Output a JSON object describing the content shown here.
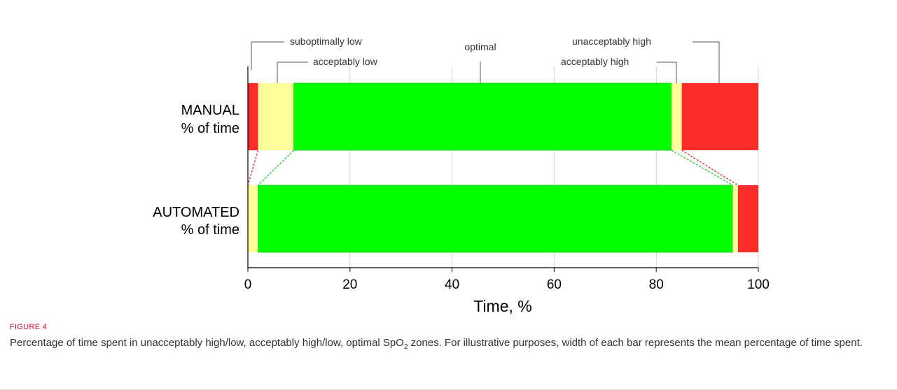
{
  "chart_data": {
    "type": "bar",
    "orientation": "horizontal-stacked",
    "categories": [
      "MANUAL\n% of time",
      "AUTOMATED\n% of time"
    ],
    "category_lines": [
      [
        "MANUAL",
        "% of time"
      ],
      [
        "AUTOMATED",
        "% of time"
      ]
    ],
    "series": [
      {
        "name": "suboptimally low",
        "color": "#ff2c2c",
        "values": [
          2,
          0
        ]
      },
      {
        "name": "acceptably low",
        "color": "#ffff99",
        "values": [
          7,
          2
        ]
      },
      {
        "name": "optimal",
        "color": "#00ff00",
        "values": [
          74,
          93
        ]
      },
      {
        "name": "acceptably high",
        "color": "#ffff99",
        "values": [
          2,
          1
        ]
      },
      {
        "name": "unacceptably high",
        "color": "#ff2c2c",
        "values": [
          15,
          4
        ]
      }
    ],
    "xlabel": "Time, %",
    "ylabel": "",
    "xlim": [
      0,
      100
    ],
    "xticks": [
      "0",
      "20",
      "40",
      "60",
      "80",
      "100"
    ],
    "grid": true,
    "legend": "callout labels above bars"
  },
  "caption": {
    "label": "FIGURE 4",
    "text_before_sub": "Percentage of time spent in unacceptably high/low, acceptably high/low, optimal SpO",
    "subscript": "2",
    "text_after_sub": " zones. For illustrative purposes, width of each bar represents the mean percentage of time spent."
  }
}
